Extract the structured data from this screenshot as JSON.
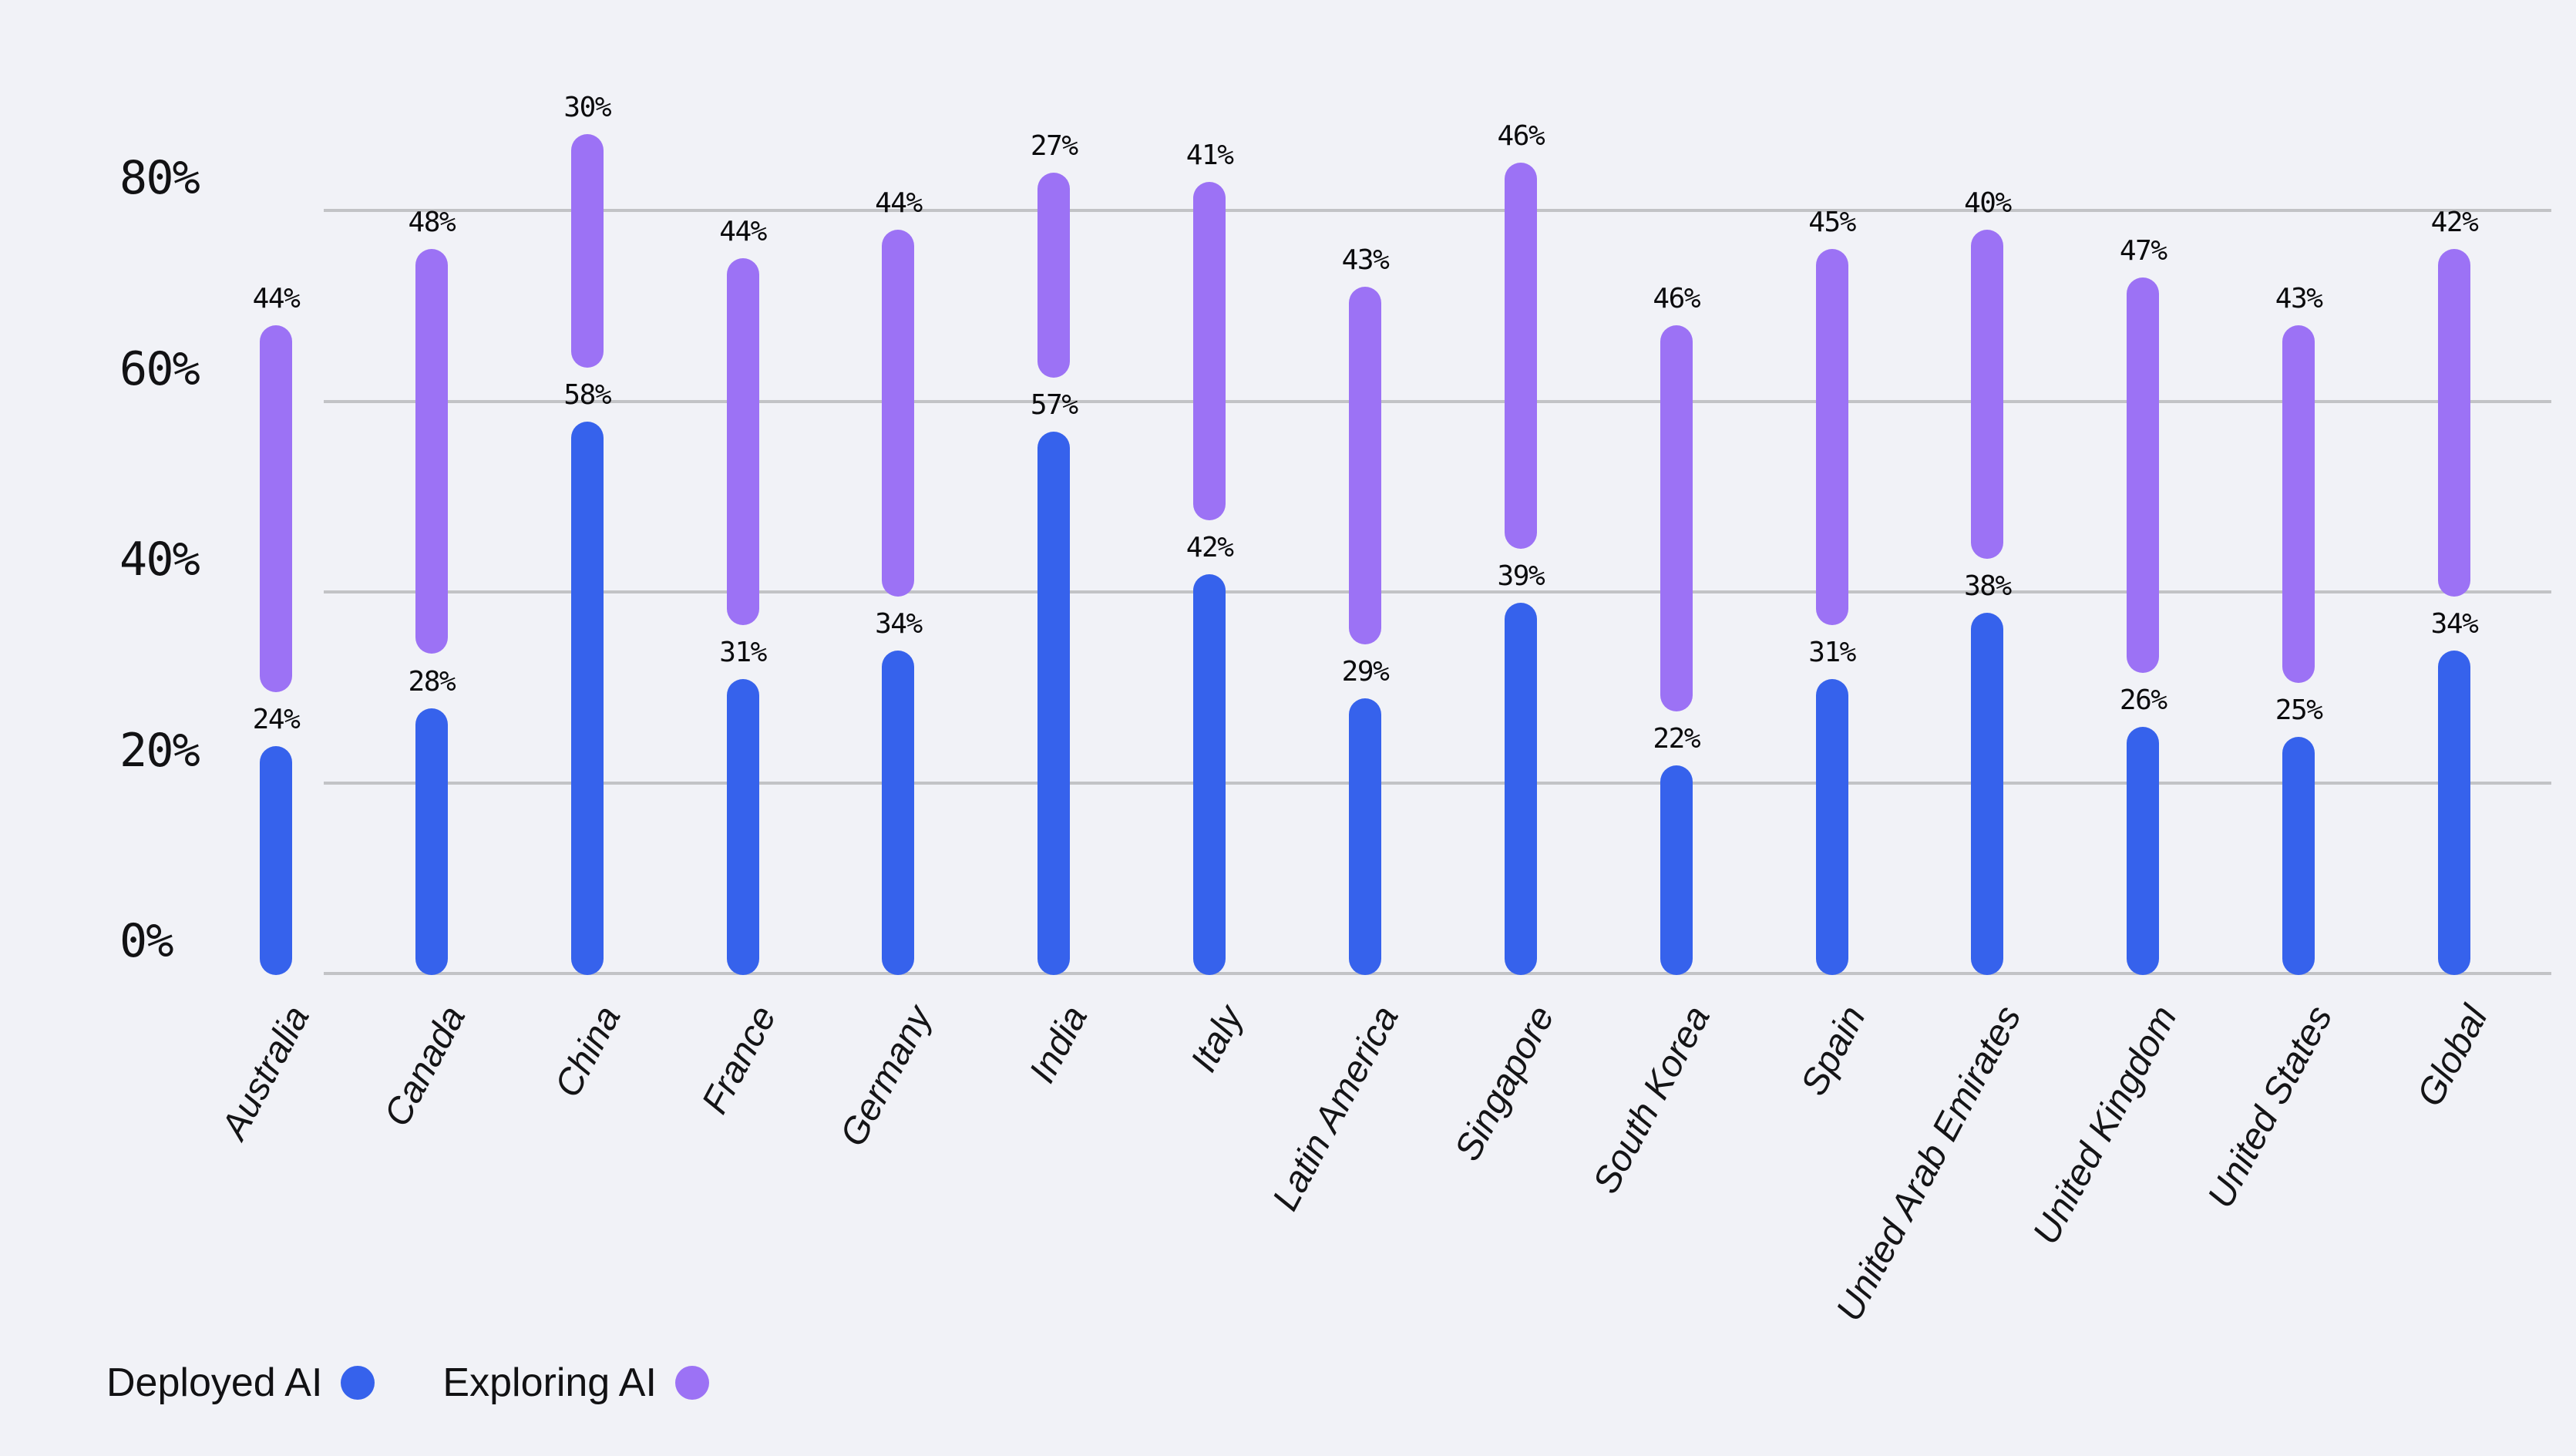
{
  "colors": {
    "background": "#F1F2F7",
    "gridline": "#C2C3C6",
    "axis_text": "#121214",
    "value_label_text": "#0B0B0D",
    "category_text": "#141416",
    "legend_text": "#111113",
    "deployed_blue": "#3662EC",
    "exploring_purple": "#9C72F5"
  },
  "chart_data": {
    "type": "bar",
    "subtype": "floating-capsule-stacked-columns",
    "title": "",
    "xlabel": "",
    "ylabel": "",
    "categories": [
      "Australia",
      "Canada",
      "China",
      "France",
      "Germany",
      "India",
      "Italy",
      "Latin America",
      "Singapore",
      "South Korea",
      "Spain",
      "United Arab Emirates",
      "United Kingdom",
      "United States",
      "Global"
    ],
    "series": [
      {
        "name": "Deployed AI",
        "color": "#3662EC",
        "values": [
          24,
          28,
          58,
          31,
          34,
          57,
          42,
          29,
          39,
          22,
          31,
          38,
          26,
          25,
          34
        ]
      },
      {
        "name": "Exploring AI",
        "color": "#9C72F5",
        "values": [
          44,
          48,
          30,
          44,
          44,
          27,
          41,
          43,
          46,
          46,
          45,
          40,
          47,
          43,
          42
        ]
      }
    ],
    "value_label_suffix": "%",
    "stacking_note": "Exploring AI capsule floats above Deployed AI capsule; its top sits at deployed+exploring with a small gap above the deployed capsule",
    "y_axis": {
      "ticks": [
        "0%",
        "20%",
        "40%",
        "60%",
        "80%"
      ],
      "tick_values": [
        0,
        20,
        40,
        60,
        80
      ],
      "range_max_visible": 88,
      "grid": true
    },
    "legend_position": "bottom-left"
  },
  "legend": {
    "items": [
      {
        "label": "Deployed AI"
      },
      {
        "label": "Exploring AI"
      }
    ]
  }
}
